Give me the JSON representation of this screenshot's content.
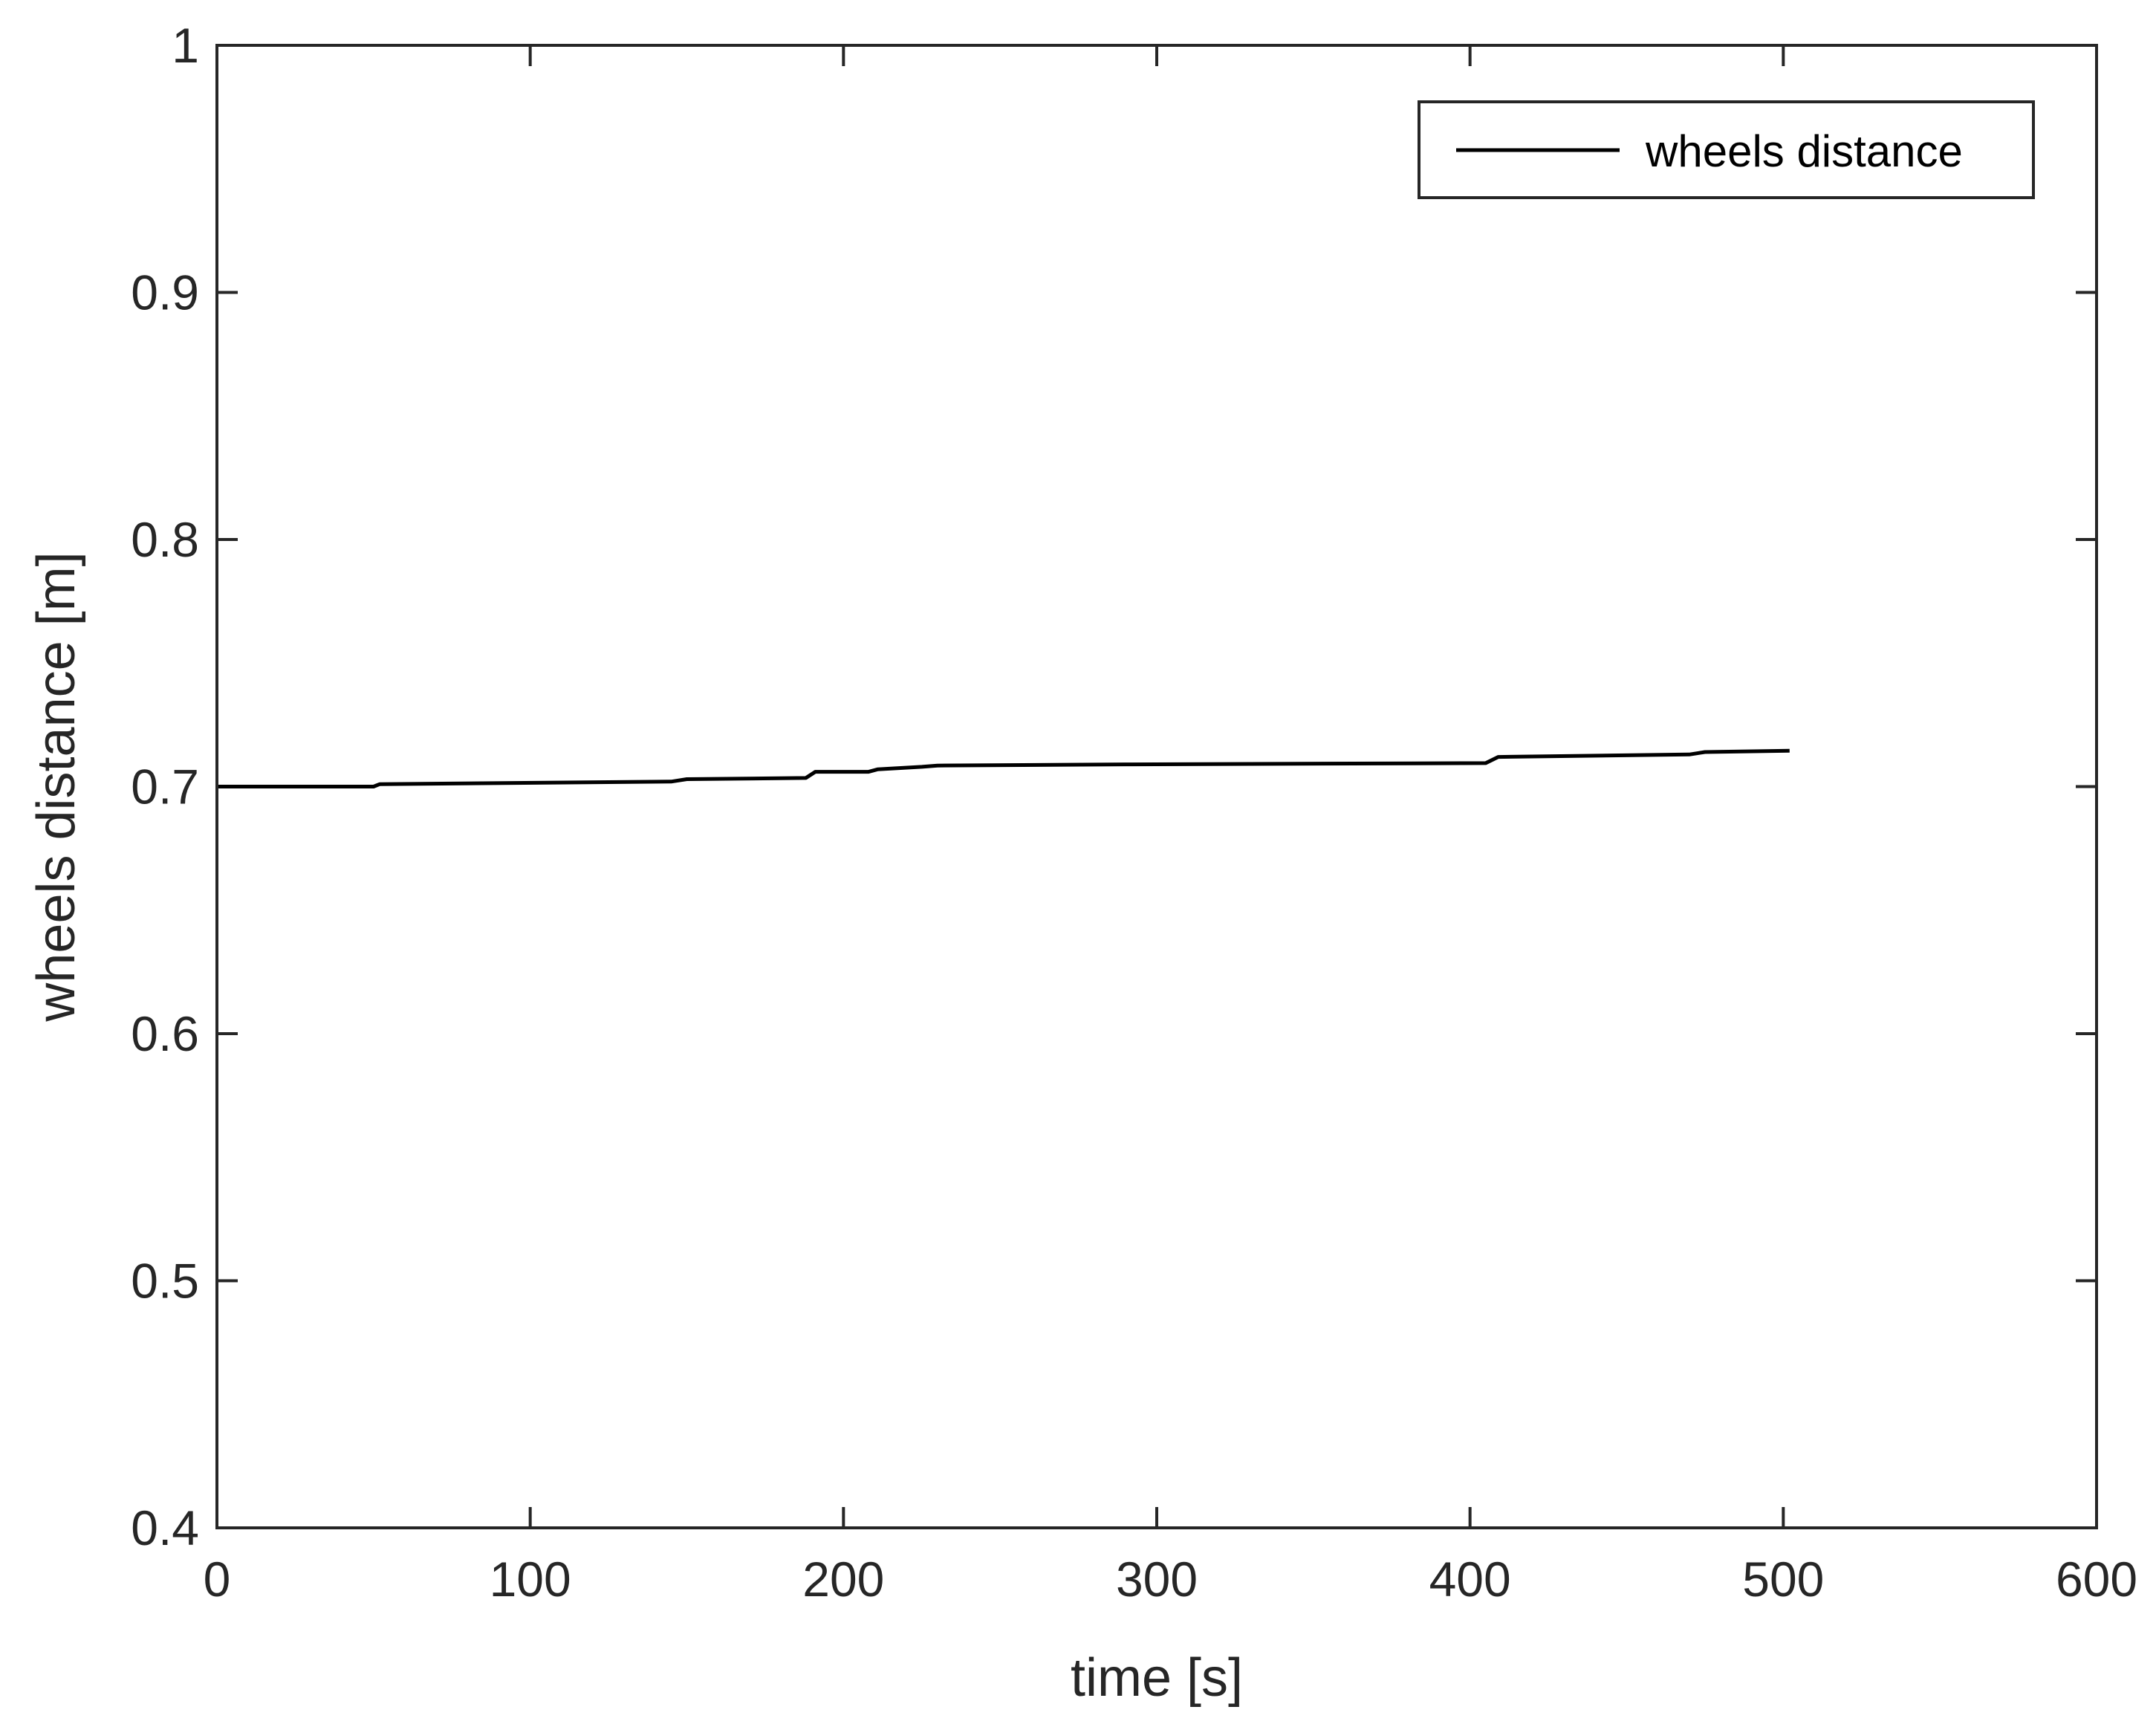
{
  "chart_data": {
    "type": "line",
    "xlabel": "time [s]",
    "ylabel": "wheels distance [m]",
    "xlim": [
      0,
      600
    ],
    "ylim": [
      0.4,
      1
    ],
    "x_ticks": [
      0,
      100,
      200,
      300,
      400,
      500,
      600
    ],
    "x_tick_labels": [
      "0",
      "100",
      "200",
      "300",
      "400",
      "500",
      "600"
    ],
    "y_ticks": [
      0.4,
      0.5,
      0.6,
      0.7,
      0.8,
      0.9,
      1
    ],
    "y_tick_labels": [
      "0.4",
      "0.5",
      "0.6",
      "0.7",
      "0.8",
      "0.9",
      "1"
    ],
    "grid": false,
    "legend_position": "top-right",
    "series": [
      {
        "name": "wheels distance",
        "color": "#000000",
        "x": [
          0,
          50,
          52,
          145,
          150,
          188,
          191,
          208,
          211,
          225,
          230,
          290,
          405,
          409,
          470,
          475,
          502
        ],
        "y": [
          0.7,
          0.7,
          0.701,
          0.702,
          0.703,
          0.7035,
          0.706,
          0.706,
          0.707,
          0.708,
          0.7085,
          0.709,
          0.7095,
          0.712,
          0.713,
          0.714,
          0.7145
        ]
      }
    ]
  }
}
